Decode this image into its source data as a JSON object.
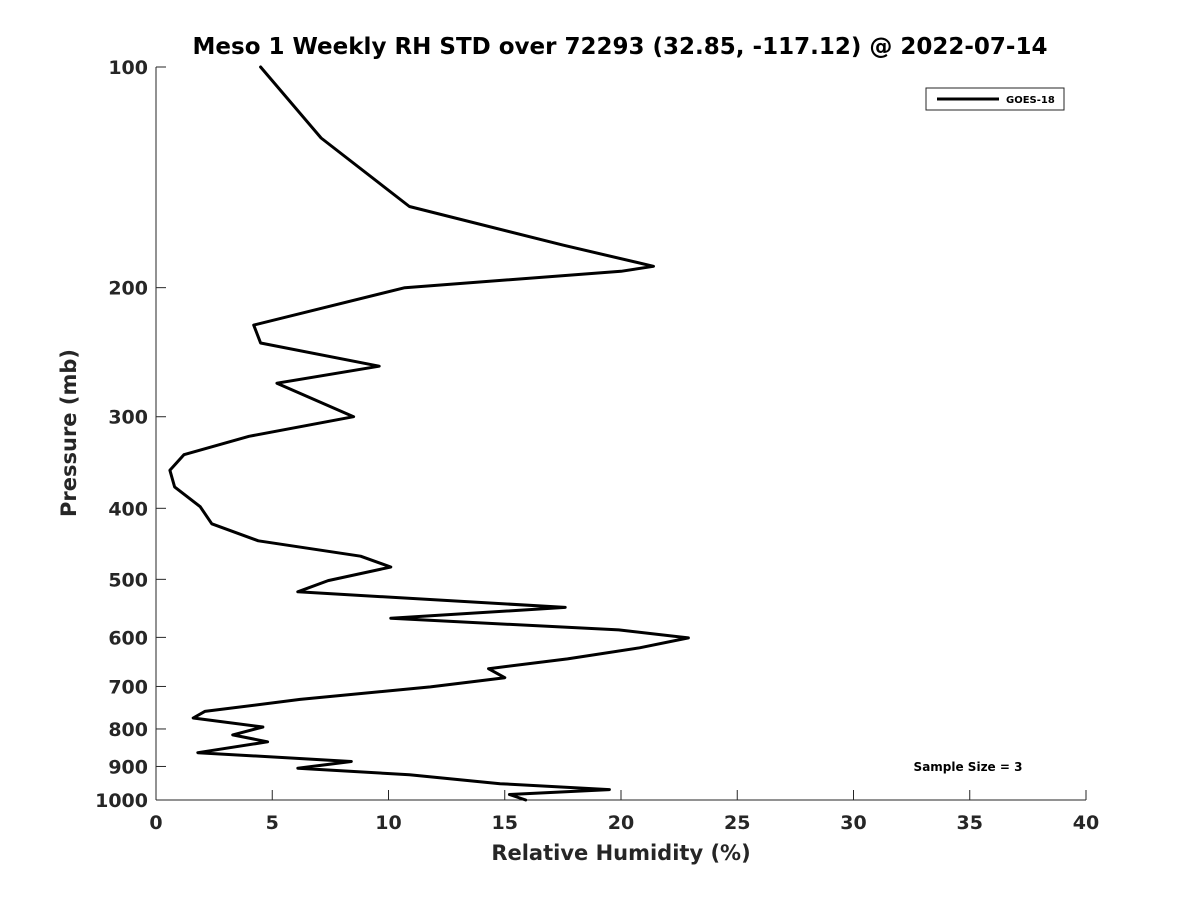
{
  "chart_data": {
    "type": "line",
    "title": "Meso 1 Weekly RH STD over 72293 (32.85, -117.12) @ 2022-07-14",
    "xlabel": "Relative Humidity (%)",
    "ylabel": "Pressure (mb)",
    "xlim": [
      0,
      40
    ],
    "ylim": [
      100,
      1000
    ],
    "yscale": "log",
    "y_reversed": true,
    "xticks": [
      0,
      5,
      10,
      15,
      20,
      25,
      30,
      35,
      40
    ],
    "yticks": [
      100,
      200,
      300,
      400,
      500,
      600,
      700,
      800,
      900,
      1000
    ],
    "grid": false,
    "legend_position": "top-right",
    "annotation": "Sample Size = 3",
    "line_color": "#000000",
    "series": [
      {
        "name": "GOES-18",
        "points": [
          [
            4.5,
            100
          ],
          [
            7.1,
            125
          ],
          [
            10.9,
            155
          ],
          [
            17.5,
            175
          ],
          [
            21.4,
            187
          ],
          [
            20.0,
            190
          ],
          [
            10.7,
            200
          ],
          [
            4.2,
            225
          ],
          [
            4.5,
            238
          ],
          [
            9.6,
            256
          ],
          [
            5.2,
            270
          ],
          [
            8.5,
            300
          ],
          [
            4.0,
            319
          ],
          [
            1.2,
            338
          ],
          [
            0.6,
            355
          ],
          [
            0.8,
            374
          ],
          [
            1.9,
            398
          ],
          [
            2.4,
            420
          ],
          [
            4.4,
            443
          ],
          [
            8.8,
            465
          ],
          [
            10.1,
            481
          ],
          [
            7.4,
            502
          ],
          [
            6.1,
            520
          ],
          [
            17.6,
            546
          ],
          [
            10.1,
            565
          ],
          [
            19.9,
            586
          ],
          [
            22.9,
            601
          ],
          [
            20.8,
            620
          ],
          [
            17.7,
            642
          ],
          [
            14.3,
            662
          ],
          [
            15.0,
            681
          ],
          [
            11.8,
            701
          ],
          [
            6.2,
            729
          ],
          [
            2.1,
            757
          ],
          [
            1.6,
            773
          ],
          [
            4.6,
            795
          ],
          [
            3.3,
            815
          ],
          [
            4.8,
            833
          ],
          [
            1.8,
            862
          ],
          [
            8.4,
            886
          ],
          [
            6.1,
            905
          ],
          [
            10.9,
            924
          ],
          [
            14.8,
            950
          ],
          [
            19.5,
            968
          ],
          [
            15.2,
            983
          ],
          [
            15.9,
            1000
          ]
        ]
      }
    ]
  }
}
